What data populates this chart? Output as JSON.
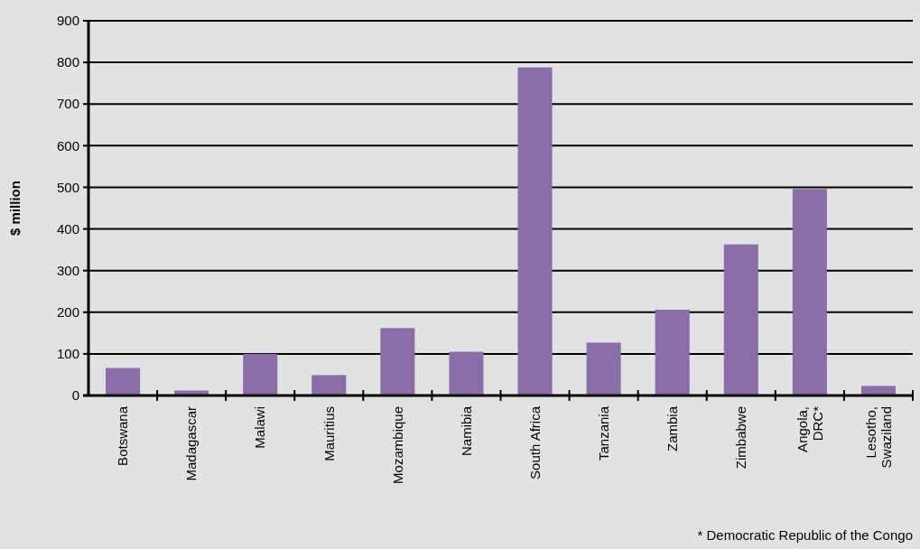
{
  "chart_data": {
    "type": "bar",
    "ylabel": "$ million",
    "categories": [
      "Botswana",
      "Madagascar",
      "Malawi",
      "Mauritius",
      "Mozambique",
      "Namibia",
      "South Africa",
      "Tanzania",
      "Zambia",
      "Zimbabwe",
      "Angola,\nDRC*",
      "Lesotho,\nSwaziland"
    ],
    "values": [
      66,
      12,
      100,
      49,
      162,
      105,
      788,
      127,
      206,
      363,
      496,
      23
    ],
    "color": "#8a6ea8",
    "ylim": [
      0,
      900
    ],
    "yticks": [
      0,
      100,
      200,
      300,
      400,
      500,
      600,
      700,
      800,
      900
    ],
    "grid": "y",
    "annotations": [
      "* Democratic Republic of the Congo"
    ]
  }
}
